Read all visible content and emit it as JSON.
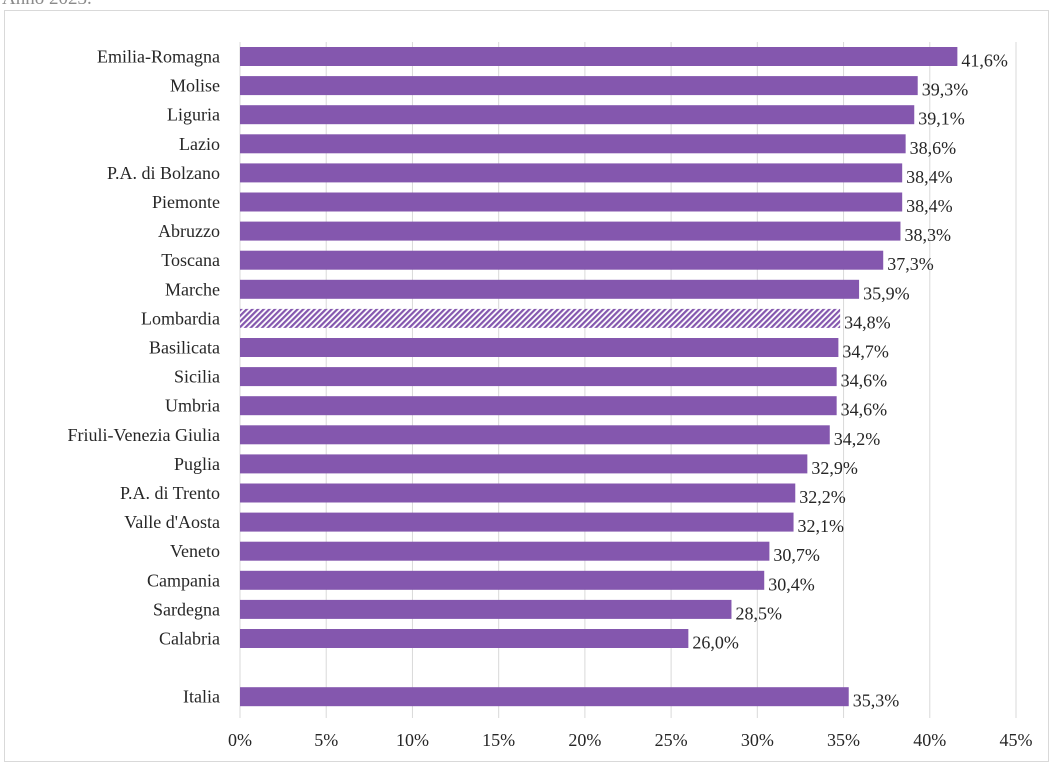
{
  "caption": "Anno 2023.",
  "chart_data": {
    "type": "bar",
    "orientation": "horizontal",
    "title": "",
    "xlabel": "",
    "ylabel": "",
    "xlim": [
      0,
      45
    ],
    "x_ticks": [
      "0%",
      "5%",
      "10%",
      "15%",
      "20%",
      "25%",
      "30%",
      "35%",
      "40%",
      "45%"
    ],
    "grid": "vertical",
    "legend": "none",
    "bar_color": "#8457ae",
    "highlight_pattern": "diagonal-hatch",
    "categories": [
      "Emilia-Romagna",
      "Molise",
      "Liguria",
      "Lazio",
      "P.A. di Bolzano",
      "Piemonte",
      "Abruzzo",
      "Toscana",
      "Marche",
      "Lombardia",
      "Basilicata",
      "Sicilia",
      "Umbria",
      "Friuli-Venezia Giulia",
      "Puglia",
      "P.A. di Trento",
      "Valle d'Aosta",
      "Veneto",
      "Campania",
      "Sardegna",
      "Calabria",
      "Italia"
    ],
    "values": [
      41.6,
      39.3,
      39.1,
      38.6,
      38.4,
      38.4,
      38.3,
      37.3,
      35.9,
      34.8,
      34.7,
      34.6,
      34.6,
      34.2,
      32.9,
      32.2,
      32.1,
      30.7,
      30.4,
      28.5,
      26.0,
      35.3
    ],
    "value_labels": [
      "41,6%",
      "39,3%",
      "39,1%",
      "38,6%",
      "38,4%",
      "38,4%",
      "38,3%",
      "37,3%",
      "35,9%",
      "34,8%",
      "34,7%",
      "34,6%",
      "34,6%",
      "34,2%",
      "32,9%",
      "32,2%",
      "32,1%",
      "30,7%",
      "30,4%",
      "28,5%",
      "26,0%",
      "35,3%"
    ],
    "highlighted": [
      "Lombardia"
    ]
  }
}
